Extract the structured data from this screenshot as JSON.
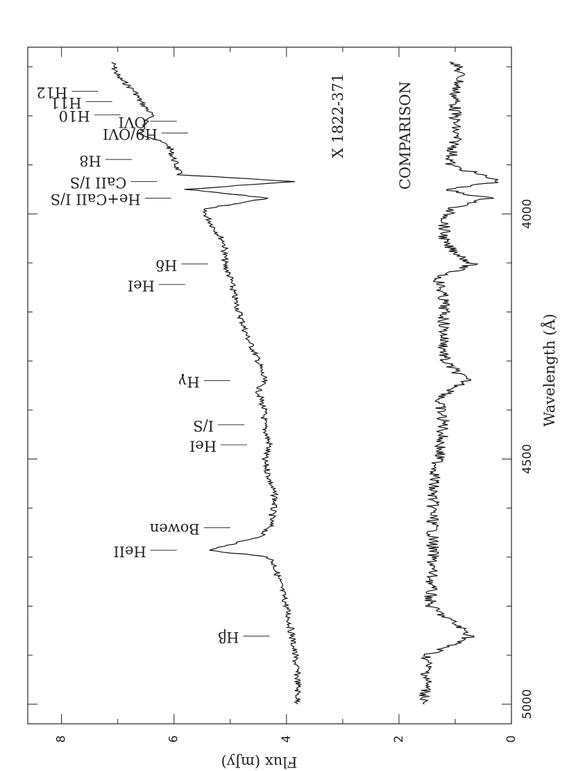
{
  "chart_data": {
    "type": "line",
    "orientation": "rotated-90-clockwise",
    "xlabel": "Wavelength (Å)",
    "ylabel": "Flux (mJy)",
    "xlim": [
      3660,
      5040
    ],
    "ylim": [
      0,
      8.6
    ],
    "x_ticks": [
      "4000",
      "4500",
      "5000"
    ],
    "y_ticks": [
      "0",
      "2",
      "4",
      "6",
      "8"
    ],
    "series": [
      {
        "name": "X 1822-371",
        "x": [
          3690,
          3720,
          3750,
          3770,
          3797,
          3835,
          3860,
          3889,
          3920,
          3934,
          3950,
          3968,
          3990,
          4026,
          4060,
          4102,
          4130,
          4180,
          4250,
          4300,
          4340,
          4360,
          4400,
          4430,
          4471,
          4500,
          4540,
          4580,
          4640,
          4660,
          4686,
          4700,
          4720,
          4760,
          4800,
          4861,
          4900,
          4950,
          5000
        ],
        "y": [
          7.1,
          7.0,
          6.7,
          6.6,
          6.4,
          6.6,
          6.1,
          6.0,
          5.9,
          3.9,
          5.8,
          4.3,
          5.5,
          5.3,
          5.1,
          5.1,
          5.0,
          4.9,
          4.7,
          4.5,
          4.4,
          4.5,
          4.4,
          4.4,
          4.3,
          4.4,
          4.3,
          4.2,
          4.3,
          4.5,
          5.4,
          4.3,
          4.2,
          4.1,
          4.0,
          3.9,
          3.85,
          3.8,
          3.8
        ]
      },
      {
        "name": "COMPARISON",
        "x": [
          3690,
          3720,
          3750,
          3800,
          3850,
          3900,
          3934,
          3950,
          3968,
          3990,
          4026,
          4060,
          4102,
          4130,
          4180,
          4250,
          4300,
          4340,
          4380,
          4430,
          4500,
          4560,
          4620,
          4700,
          4800,
          4861,
          4900,
          4950,
          5000
        ],
        "y": [
          1.0,
          0.9,
          1.0,
          1.0,
          1.0,
          1.1,
          0.2,
          1.2,
          0.4,
          1.1,
          1.2,
          1.2,
          0.7,
          1.3,
          1.2,
          1.2,
          1.2,
          0.8,
          1.3,
          1.2,
          1.3,
          1.4,
          1.4,
          1.4,
          1.45,
          0.7,
          1.5,
          1.5,
          1.55
        ]
      }
    ],
    "annotations": [
      {
        "label": "H12",
        "x": 3750,
        "y": 7.35
      },
      {
        "label": "H11",
        "x": 3771,
        "y": 7.1
      },
      {
        "label": "H10",
        "x": 3798,
        "y": 6.95
      },
      {
        "label": "OVI",
        "x": 3811,
        "y": 5.95
      },
      {
        "label": "H9/OVI",
        "x": 3835,
        "y": 5.75
      },
      {
        "label": "H8",
        "x": 3889,
        "y": 6.75
      },
      {
        "label": "CaII I/S",
        "x": 3934,
        "y": 6.3
      },
      {
        "label": "He+CaII I/S",
        "x": 3968,
        "y": 6.05
      },
      {
        "label": "Hδ",
        "x": 4102,
        "y": 5.4
      },
      {
        "label": "HeI",
        "x": 4144,
        "y": 5.8
      },
      {
        "label": "Hγ",
        "x": 4340,
        "y": 5.0
      },
      {
        "label": "I/S",
        "x": 4430,
        "y": 4.75
      },
      {
        "label": "HeI",
        "x": 4471,
        "y": 4.7
      },
      {
        "label": "Bowen",
        "x": 4640,
        "y": 5.0
      },
      {
        "label": "HeII",
        "x": 4686,
        "y": 5.95
      },
      {
        "label": "Hβ",
        "x": 4861,
        "y": 4.3
      }
    ],
    "text_labels": [
      {
        "text": "X 1822-371",
        "x": 3800,
        "y": 3.0
      },
      {
        "text": "COMPARISON",
        "x": 3840,
        "y": 1.8
      }
    ],
    "grid": false,
    "legend": "none"
  },
  "style": {
    "line_color": "#111111",
    "axis_color": "#333333",
    "label_color": "#555555"
  }
}
